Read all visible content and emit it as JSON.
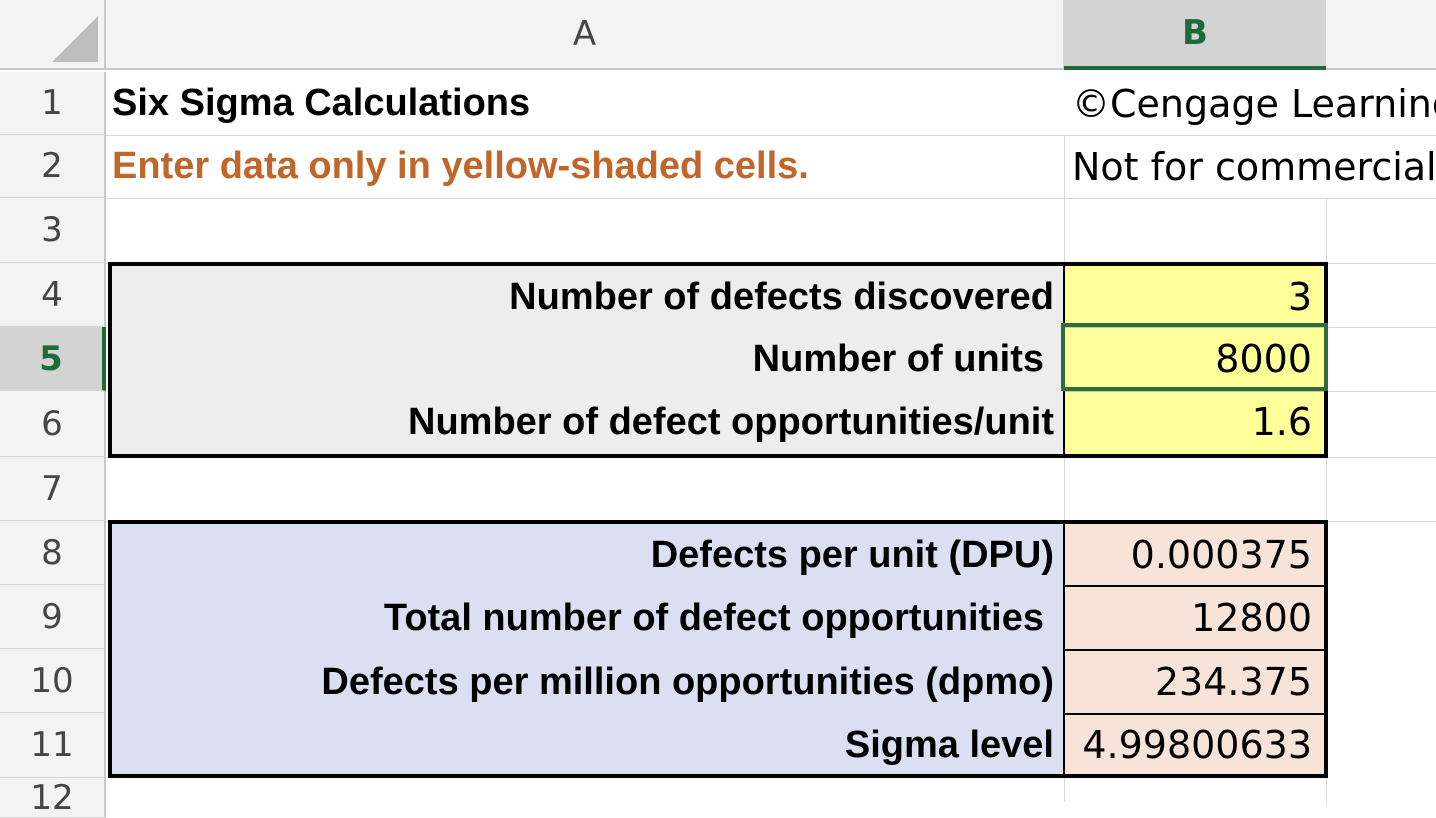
{
  "columns": [
    "A",
    "B"
  ],
  "rows": [
    "1",
    "2",
    "3",
    "4",
    "5",
    "6",
    "7",
    "8",
    "9",
    "10",
    "11",
    "12"
  ],
  "cells": {
    "a1": "Six Sigma Calculations",
    "b1": "©Cengage Learning",
    "a2": "Enter data only in yellow-shaded cells.",
    "b2": "Not for commercial",
    "a4": "Number of defects discovered",
    "b4": "3",
    "a5": "Number of units",
    "b5": "8000",
    "a6": "Number of defect opportunities/unit",
    "b6": "1.6",
    "a8": "Defects per unit (DPU)",
    "b8": "0.000375",
    "a9": "Total number of defect opportunities",
    "b9": "12800",
    "a10": "Defects per million opportunities (dpmo)",
    "b10": "234.375",
    "a11": "Sigma level",
    "b11": "4.99800633"
  },
  "selected_cell": "B5",
  "colors": {
    "input_fill": "#ffff99",
    "input_label_fill": "#ededed",
    "output_label_fill": "#dae0f2",
    "output_fill": "#f8e3d8",
    "instruction_text": "#c0662b",
    "selection": "#2e6e3e"
  }
}
